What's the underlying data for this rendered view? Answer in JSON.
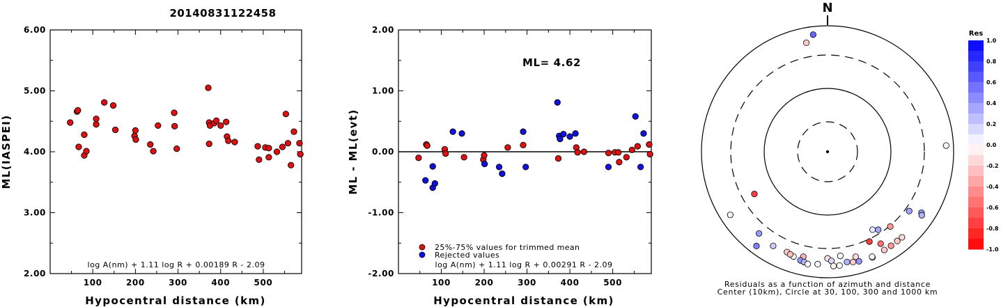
{
  "title": "20140831122458",
  "chart_data": [
    {
      "type": "scatter",
      "title": "",
      "xlabel": "Hypocentral distance (km)",
      "ylabel": "ML(IASPEI)",
      "xlim": [
        0,
        590
      ],
      "ylim": [
        2.0,
        6.0
      ],
      "xticks": [
        "100",
        "200",
        "300",
        "400",
        "500"
      ],
      "yticks": [
        "2.00",
        "3.00",
        "4.00",
        "5.00",
        "6.00"
      ],
      "formula": "log A(nm) + 1.11 log R + 0.00189 R - 2.09",
      "series": [
        {
          "color": "#dd1111",
          "points": [
            [
              47,
              4.48
            ],
            [
              63,
              4.66
            ],
            [
              65,
              4.68
            ],
            [
              67,
              4.08
            ],
            [
              80,
              4.28
            ],
            [
              80,
              3.94
            ],
            [
              85,
              4.01
            ],
            [
              108,
              4.45
            ],
            [
              108,
              4.54
            ],
            [
              127,
              4.81
            ],
            [
              148,
              4.76
            ],
            [
              153,
              4.36
            ],
            [
              198,
              4.26
            ],
            [
              200,
              4.35
            ],
            [
              201,
              4.2
            ],
            [
              235,
              4.12
            ],
            [
              242,
              4.01
            ],
            [
              253,
              4.43
            ],
            [
              291,
              4.64
            ],
            [
              292,
              4.42
            ],
            [
              297,
              4.05
            ],
            [
              371,
              5.05
            ],
            [
              373,
              4.13
            ],
            [
              373,
              4.48
            ],
            [
              375,
              4.43
            ],
            [
              385,
              4.47
            ],
            [
              390,
              4.51
            ],
            [
              400,
              4.43
            ],
            [
              413,
              4.49
            ],
            [
              415,
              4.25
            ],
            [
              418,
              4.18
            ],
            [
              433,
              4.16
            ],
            [
              487,
              4.09
            ],
            [
              490,
              3.87
            ],
            [
              505,
              4.07
            ],
            [
              513,
              4.06
            ],
            [
              513,
              3.91
            ],
            [
              532,
              4.0
            ],
            [
              545,
              4.08
            ],
            [
              553,
              4.62
            ],
            [
              558,
              4.14
            ],
            [
              565,
              3.78
            ],
            [
              572,
              4.33
            ],
            [
              585,
              4.14
            ],
            [
              587,
              3.96
            ]
          ]
        }
      ]
    },
    {
      "type": "scatter",
      "title": "",
      "xlabel": "Hypocentral distance (km)",
      "ylabel": "ML - ML(evt)",
      "xlim": [
        0,
        590
      ],
      "ylim": [
        -2.0,
        2.0
      ],
      "xticks": [
        "100",
        "200",
        "300",
        "400",
        "500"
      ],
      "yticks": [
        "-2.00",
        "-1.00",
        "0.00",
        "1.00",
        "2.00"
      ],
      "reference_line": 0.0,
      "annotation": "ML= 4.62",
      "formula": "log A(nm) + 1.11 log R + 0.00291 R - 2.09",
      "legend": [
        "25%-75% values for trimmed mean",
        "Rejected values"
      ],
      "series": [
        {
          "name": "25%-75% values for trimmed mean",
          "color": "#dd1111",
          "points": [
            [
              47,
              -0.1
            ],
            [
              65,
              0.12
            ],
            [
              67,
              0.1
            ],
            [
              108,
              0.04
            ],
            [
              110,
              -0.03
            ],
            [
              153,
              -0.09
            ],
            [
              198,
              -0.13
            ],
            [
              200,
              -0.06
            ],
            [
              255,
              0.07
            ],
            [
              291,
              0.11
            ],
            [
              373,
              -0.11
            ],
            [
              415,
              0.07
            ],
            [
              418,
              -0.01
            ],
            [
              433,
              0.0
            ],
            [
              490,
              -0.02
            ],
            [
              505,
              -0.01
            ],
            [
              513,
              -0.01
            ],
            [
              515,
              -0.17
            ],
            [
              532,
              -0.09
            ],
            [
              545,
              0.03
            ],
            [
              558,
              0.09
            ],
            [
              585,
              0.12
            ],
            [
              587,
              -0.04
            ]
          ]
        },
        {
          "name": "Rejected values",
          "color": "#1111dd",
          "points": [
            [
              63,
              -0.47
            ],
            [
              80,
              -0.24
            ],
            [
              80,
              -0.59
            ],
            [
              85,
              -0.52
            ],
            [
              127,
              0.33
            ],
            [
              148,
              0.3
            ],
            [
              201,
              -0.2
            ],
            [
              235,
              -0.25
            ],
            [
              242,
              -0.36
            ],
            [
              291,
              0.33
            ],
            [
              297,
              -0.25
            ],
            [
              371,
              0.81
            ],
            [
              375,
              0.26
            ],
            [
              377,
              0.21
            ],
            [
              385,
              0.29
            ],
            [
              400,
              0.25
            ],
            [
              413,
              0.3
            ],
            [
              490,
              -0.25
            ],
            [
              553,
              0.58
            ],
            [
              565,
              -0.25
            ],
            [
              572,
              0.3
            ]
          ]
        }
      ]
    },
    {
      "type": "scatter",
      "title": "",
      "north_label": "N",
      "caption": [
        "Residuals as a function of azimuth and distance",
        "Center (10km), Circle at 30, 100, 300 and 1000 km"
      ],
      "colorbar": {
        "title": "Res",
        "ticks": [
          "1.0",
          "0.8",
          "0.6",
          "0.4",
          "0.2",
          "0.0",
          "-0.2",
          "-0.4",
          "-0.6",
          "-0.8",
          "-1.0"
        ],
        "range": [
          -1.0,
          1.0
        ],
        "positive_color": "#0000ff",
        "negative_color": "#ff0000"
      },
      "stations": [
        {
          "az": -7,
          "dist": 720,
          "res": 0.6
        },
        {
          "az": -11,
          "dist": 540,
          "res": -0.2
        },
        {
          "az": 87,
          "dist": 740,
          "res": -0.05
        },
        {
          "az": -120,
          "dist": 200,
          "res": -0.75
        },
        {
          "az": 150,
          "dist": 240,
          "res": 0.1
        },
        {
          "az": 147,
          "dist": 265,
          "res": 0.35
        },
        {
          "az": 140,
          "dist": 310,
          "res": -0.4
        },
        {
          "az": 126,
          "dist": 355,
          "res": 0.35
        },
        {
          "az": 155,
          "dist": 330,
          "res": -0.75
        },
        {
          "az": 123,
          "dist": 560,
          "res": 0.4
        },
        {
          "az": 124,
          "dist": 600,
          "res": 0.3
        },
        {
          "az": -123,
          "dist": 660,
          "res": 0.05
        },
        {
          "az": -140,
          "dist": 450,
          "res": 0.4
        },
        {
          "az": -150,
          "dist": 490,
          "res": 0.2
        },
        {
          "az": -143,
          "dist": 720,
          "res": 0.5
        },
        {
          "az": -158,
          "dist": 480,
          "res": -0.2
        },
        {
          "az": -162,
          "dist": 520,
          "res": 0.02
        },
        {
          "az": -167,
          "dist": 470,
          "res": -0.3
        },
        {
          "az": 173,
          "dist": 420,
          "res": 0.02
        },
        {
          "az": 180,
          "dist": 450,
          "res": -0.1
        },
        {
          "az": 178,
          "dist": 500,
          "res": 0.15
        },
        {
          "az": -175,
          "dist": 580,
          "res": 0.03
        },
        {
          "az": 170,
          "dist": 560,
          "res": 0.3
        },
        {
          "az": 167,
          "dist": 590,
          "res": -0.2
        },
        {
          "az": 150,
          "dist": 440,
          "res": -0.55
        },
        {
          "az": 165,
          "dist": 490,
          "res": -0.15
        },
        {
          "az": -166,
          "dist": 560,
          "res": 0.4
        },
        {
          "az": -168,
          "dist": 580,
          "res": 0.3
        },
        {
          "az": -170,
          "dist": 610,
          "res": -0.02
        },
        {
          "az": 177,
          "dist": 620,
          "res": -0.05
        },
        {
          "az": 174,
          "dist": 620,
          "res": 0.02
        },
        {
          "az": 164,
          "dist": 610,
          "res": 0.4
        },
        {
          "az": 150,
          "dist": 595,
          "res": -0.2
        },
        {
          "az": 146,
          "dist": 595,
          "res": -0.4
        },
        {
          "az": 142,
          "dist": 590,
          "res": -0.2
        },
        {
          "az": 139,
          "dist": 595,
          "res": -0.15
        },
        {
          "az": -160,
          "dist": 500,
          "res": -0.25
        },
        {
          "az": 157,
          "dist": 630,
          "res": 0.0
        },
        {
          "az": 157,
          "dist": 610,
          "res": 0.02
        }
      ]
    }
  ]
}
